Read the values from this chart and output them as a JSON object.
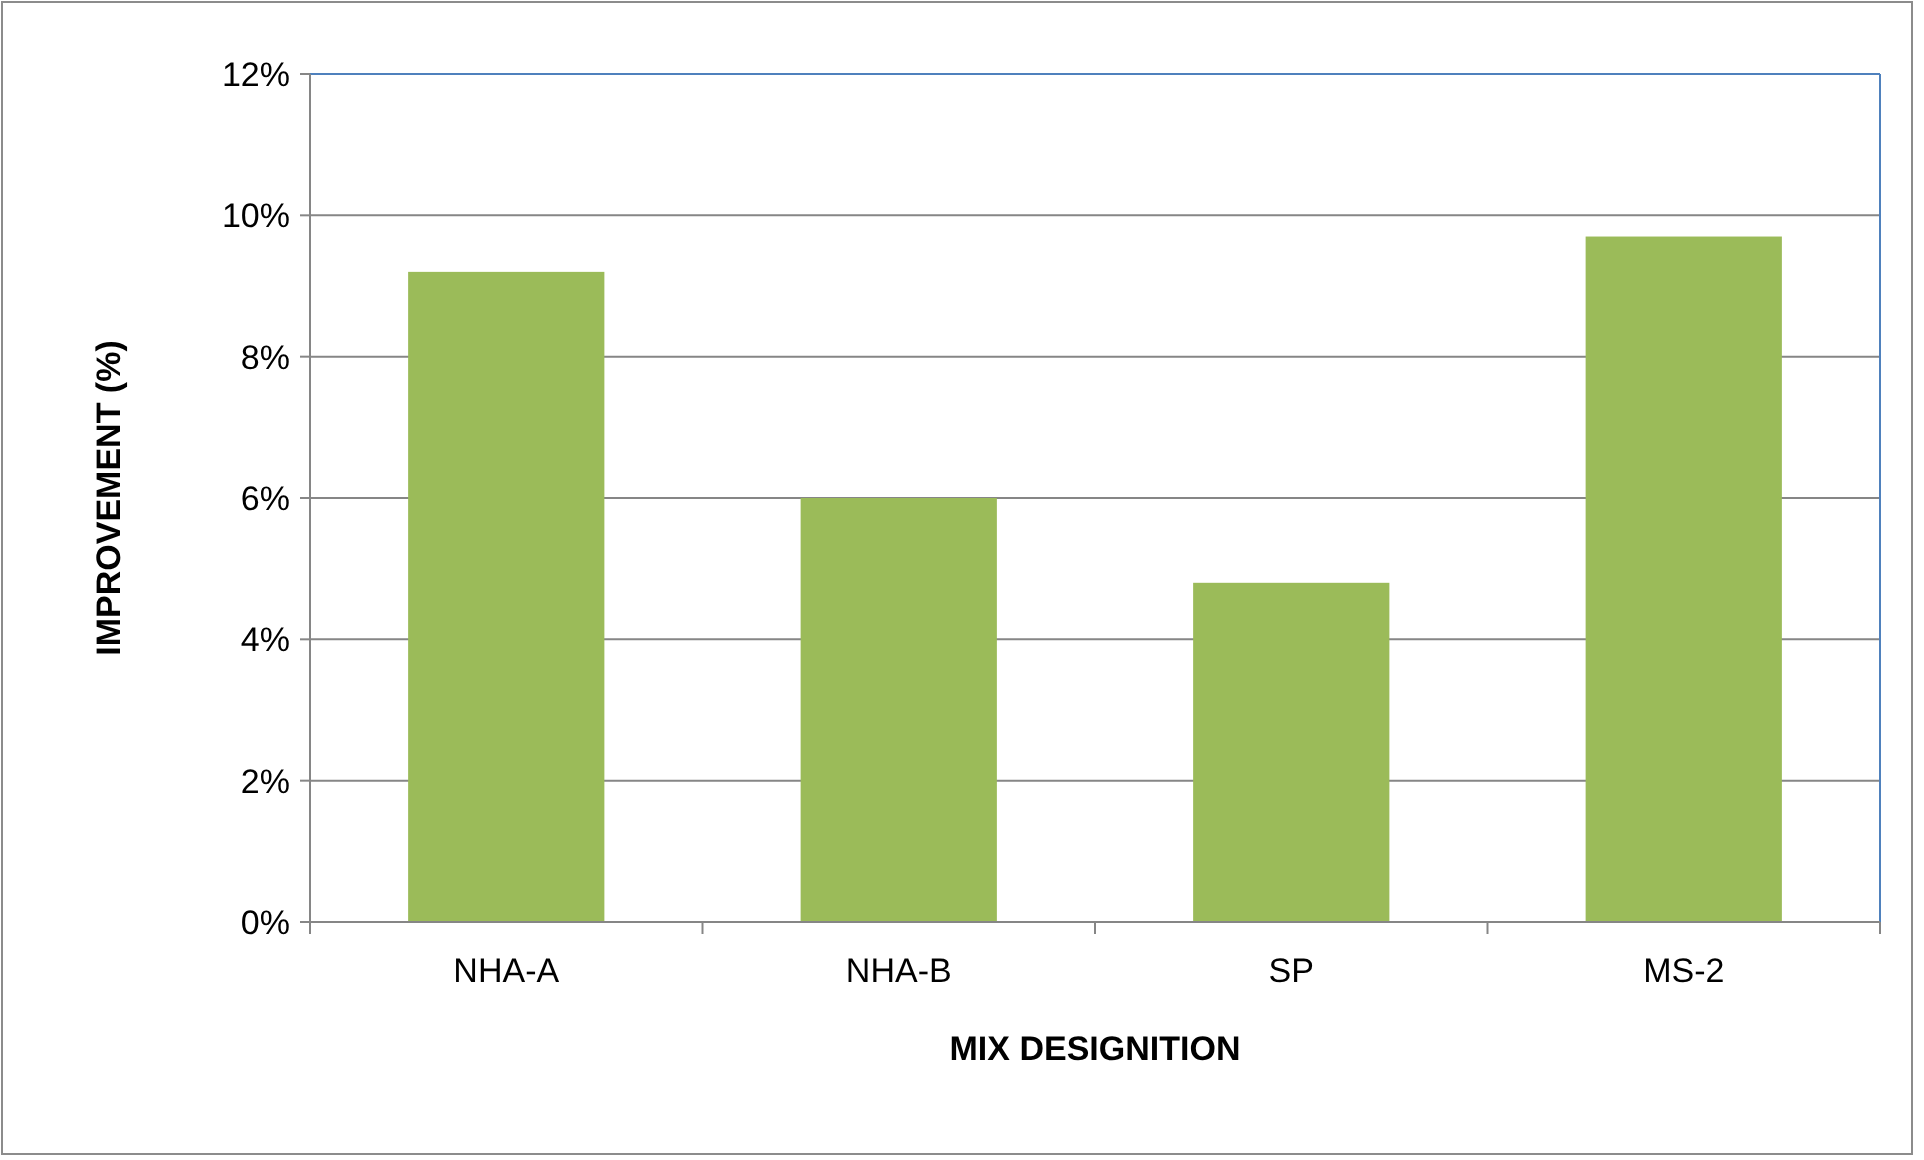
{
  "chart_data": {
    "type": "bar",
    "xlabel": "MIX DESIGNITION",
    "ylabel": "IMPROVEMENT (%)",
    "categories": [
      "NHA-A",
      "NHA-B",
      "SP",
      "MS-2"
    ],
    "values": [
      9.2,
      6.0,
      4.8,
      9.7
    ],
    "color": "#9bbb59",
    "ylim": [
      0,
      12
    ],
    "yticks": [
      {
        "value": 0,
        "label": "0%"
      },
      {
        "value": 2,
        "label": "2%"
      },
      {
        "value": 4,
        "label": "4%"
      },
      {
        "value": 6,
        "label": "6%"
      },
      {
        "value": 8,
        "label": "8%"
      },
      {
        "value": 10,
        "label": "10%"
      },
      {
        "value": 12,
        "label": "12%"
      }
    ],
    "grid": "y"
  }
}
